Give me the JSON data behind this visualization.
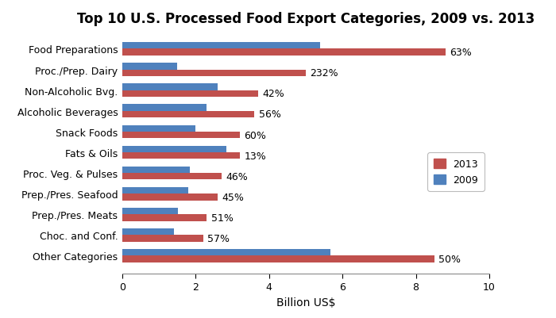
{
  "title": "Top 10 U.S. Processed Food Export Categories, 2009 vs. 2013",
  "categories": [
    "Food Preparations",
    "Proc./Prep. Dairy",
    "Non-Alcoholic Bvg.",
    "Alcoholic Beverages",
    "Snack Foods",
    "Fats & Oils",
    "Proc. Veg. & Pulses",
    "Prep./Pres. Seafood",
    "Prep./Pres. Meats",
    "Choc. and Conf.",
    "Other Categories"
  ],
  "values_2013": [
    8.8,
    5.0,
    3.7,
    3.6,
    3.2,
    3.2,
    2.7,
    2.6,
    2.3,
    2.2,
    8.5
  ],
  "values_2009": [
    5.4,
    1.5,
    2.6,
    2.3,
    2.0,
    2.83,
    1.85,
    1.79,
    1.52,
    1.4,
    5.67
  ],
  "pct_labels": [
    "63%",
    "232%",
    "42%",
    "56%",
    "60%",
    "13%",
    "46%",
    "45%",
    "51%",
    "57%",
    "50%"
  ],
  "color_2013": "#C0504D",
  "color_2009": "#4F81BD",
  "xlabel": "Billion US$",
  "xlim": [
    0,
    10
  ],
  "xticks": [
    0,
    2,
    4,
    6,
    8,
    10
  ],
  "legend_labels": [
    "2013",
    "2009"
  ],
  "title_fontsize": 12,
  "label_fontsize": 9,
  "tick_fontsize": 9,
  "bar_height": 0.32,
  "background_color": "#ffffff"
}
